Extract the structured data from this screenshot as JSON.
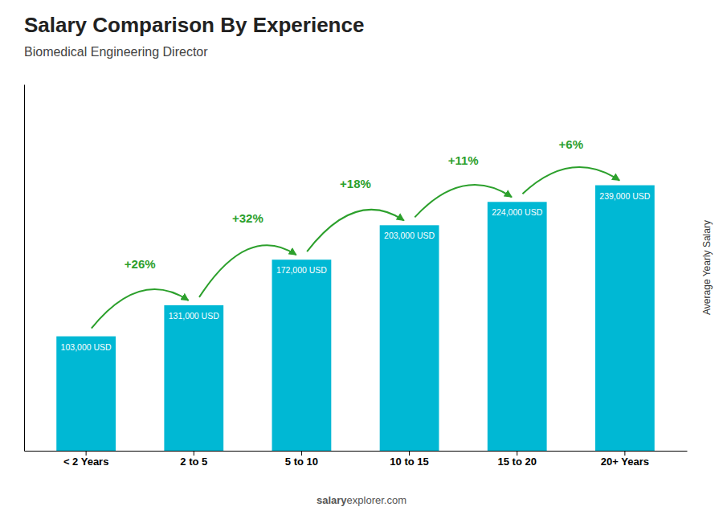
{
  "chart_data": {
    "type": "bar",
    "title": "Salary Comparison By Experience",
    "subtitle": "Biomedical Engineering Director",
    "categories": [
      "< 2 Years",
      "2 to 5",
      "5 to 10",
      "10 to 15",
      "15 to 20",
      "20+ Years"
    ],
    "values": [
      103000,
      131000,
      172000,
      203000,
      224000,
      239000
    ],
    "value_labels": [
      "103,000 USD",
      "131,000 USD",
      "172,000 USD",
      "203,000 USD",
      "224,000 USD",
      "239,000 USD"
    ],
    "data_labels": true,
    "color": "#00b8d4",
    "ylabel": "Average Yearly Salary",
    "ylim": [
      0,
      329820
    ],
    "tick_labels": "x",
    "grid": false,
    "annotations": [
      {
        "text": "+26%",
        "from": "< 2 Years",
        "to": "2 to 5"
      },
      {
        "text": "+32%",
        "from": "2 to 5",
        "to": "5 to 10"
      },
      {
        "text": "+18%",
        "from": "5 to 10",
        "to": "10 to 15"
      },
      {
        "text": "+11%",
        "from": "10 to 15",
        "to": "15 to 20"
      },
      {
        "text": "+6%",
        "from": "15 to 20",
        "to": "20+ Years"
      }
    ],
    "watermark": [
      "salary",
      "explorer.com"
    ]
  }
}
